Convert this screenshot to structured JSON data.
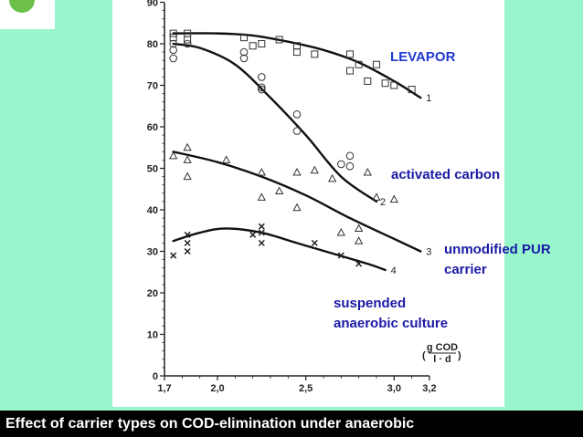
{
  "caption": "Effect of carrier types on COD-elimination under anaerobic",
  "colors": {
    "background": "#99f5cc",
    "plot_background": "#ffffff",
    "caption_bar": "#000000",
    "annotation_text": "#1a1aa6",
    "levapor_text": "#1f3ad0"
  },
  "chart_data": {
    "type": "scatter",
    "x_ticks": [
      1.7,
      2.0,
      2.5,
      3.0,
      3.2
    ],
    "x_tick_labels": [
      "1,7",
      "2,0",
      "2,5",
      "3,0",
      "3,2"
    ],
    "y_ticks": [
      0,
      10,
      20,
      30,
      40,
      50,
      60,
      70,
      80,
      90
    ],
    "y_tick_labels": [
      "0",
      "10",
      "20",
      "30",
      "40",
      "50",
      "60",
      "70",
      "80",
      "90"
    ],
    "xlim": [
      1.7,
      3.2
    ],
    "ylim": [
      0,
      90
    ],
    "unit_label": {
      "numerator": "g COD",
      "denominator": "l · d"
    },
    "annotations": [
      {
        "id": "levapor",
        "lines": [
          "LEVAPOR"
        ]
      },
      {
        "id": "activated-carbon",
        "lines": [
          "activated carbon"
        ]
      },
      {
        "id": "unmodified-pur",
        "lines": [
          "unmodified PUR",
          "carrier"
        ]
      },
      {
        "id": "suspended",
        "lines": [
          "suspended",
          "anaerobic culture"
        ]
      }
    ],
    "series": [
      {
        "name": "1",
        "marker": "square",
        "curve": [
          [
            1.75,
            82.5
          ],
          [
            2.0,
            82.5
          ],
          [
            2.2,
            82.0
          ],
          [
            2.4,
            80.5
          ],
          [
            2.6,
            78.5
          ],
          [
            2.8,
            75.5
          ],
          [
            3.0,
            71.0
          ],
          [
            3.15,
            67.0
          ]
        ],
        "points": [
          [
            1.75,
            82.5
          ],
          [
            1.75,
            81.5
          ],
          [
            1.83,
            82.5
          ],
          [
            1.83,
            81.0
          ],
          [
            2.15,
            81.5
          ],
          [
            2.2,
            79.5
          ],
          [
            2.25,
            80.0
          ],
          [
            2.35,
            81.0
          ],
          [
            2.45,
            79.5
          ],
          [
            2.45,
            78.0
          ],
          [
            2.55,
            77.5
          ],
          [
            2.75,
            77.5
          ],
          [
            2.75,
            73.5
          ],
          [
            2.8,
            75.0
          ],
          [
            2.85,
            71.0
          ],
          [
            2.9,
            75.0
          ],
          [
            2.95,
            70.5
          ],
          [
            3.0,
            70.0
          ],
          [
            3.1,
            69.0
          ]
        ]
      },
      {
        "name": "2",
        "marker": "circle",
        "curve": [
          [
            1.75,
            80.0
          ],
          [
            1.9,
            79.0
          ],
          [
            2.1,
            75.0
          ],
          [
            2.3,
            67.0
          ],
          [
            2.5,
            58.0
          ],
          [
            2.7,
            48.0
          ],
          [
            2.9,
            42.0
          ]
        ],
        "points": [
          [
            1.75,
            80.0
          ],
          [
            1.75,
            78.5
          ],
          [
            1.75,
            76.5
          ],
          [
            1.83,
            80.0
          ],
          [
            2.15,
            78.0
          ],
          [
            2.15,
            76.5
          ],
          [
            2.25,
            72.0
          ],
          [
            2.25,
            69.5
          ],
          [
            2.25,
            69.0
          ],
          [
            2.45,
            63.0
          ],
          [
            2.45,
            59.0
          ],
          [
            2.7,
            51.0
          ],
          [
            2.75,
            53.0
          ],
          [
            2.75,
            50.5
          ]
        ]
      },
      {
        "name": "3",
        "marker": "triangle",
        "curve": [
          [
            1.75,
            54.0
          ],
          [
            2.0,
            51.5
          ],
          [
            2.25,
            48.0
          ],
          [
            2.5,
            43.5
          ],
          [
            2.75,
            38.0
          ],
          [
            3.0,
            33.0
          ],
          [
            3.15,
            30.0
          ]
        ],
        "points": [
          [
            1.75,
            53.0
          ],
          [
            1.83,
            55.0
          ],
          [
            1.83,
            52.0
          ],
          [
            1.83,
            48.0
          ],
          [
            2.05,
            52.0
          ],
          [
            2.25,
            49.0
          ],
          [
            2.25,
            43.0
          ],
          [
            2.35,
            44.5
          ],
          [
            2.45,
            49.0
          ],
          [
            2.45,
            40.5
          ],
          [
            2.55,
            49.5
          ],
          [
            2.65,
            47.5
          ],
          [
            2.7,
            34.5
          ],
          [
            2.8,
            35.5
          ],
          [
            2.8,
            32.5
          ],
          [
            2.85,
            49.0
          ],
          [
            2.9,
            43.0
          ],
          [
            3.0,
            42.5
          ]
        ]
      },
      {
        "name": "4",
        "marker": "cross",
        "curve": [
          [
            1.75,
            32.5
          ],
          [
            1.9,
            34.5
          ],
          [
            2.05,
            35.5
          ],
          [
            2.25,
            34.5
          ],
          [
            2.45,
            32.0
          ],
          [
            2.65,
            29.5
          ],
          [
            2.85,
            27.0
          ],
          [
            2.95,
            25.5
          ]
        ],
        "points": [
          [
            1.75,
            29.0
          ],
          [
            1.83,
            34.0
          ],
          [
            1.83,
            32.0
          ],
          [
            1.83,
            30.0
          ],
          [
            2.2,
            34.0
          ],
          [
            2.25,
            36.0
          ],
          [
            2.25,
            34.5
          ],
          [
            2.25,
            32.0
          ],
          [
            2.55,
            32.0
          ],
          [
            2.7,
            29.0
          ],
          [
            2.8,
            27.0
          ]
        ]
      }
    ]
  }
}
